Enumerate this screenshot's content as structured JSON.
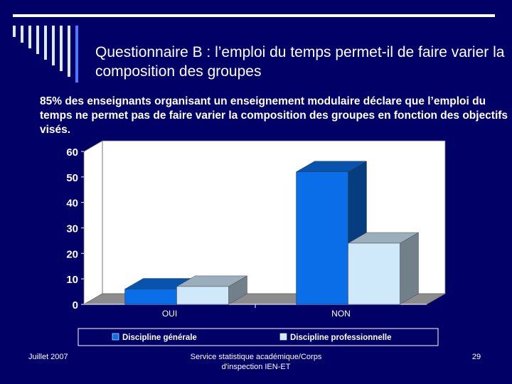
{
  "slide": {
    "title": "Questionnaire B : l’emploi du temps permet-il de faire varier la composition des groupes",
    "subtitle": "85% des enseignants organisant un enseignement modulaire déclare que l’emploi du temps ne permet pas de faire varier la composition des groupes en fonction des objectifs visés.",
    "footer_left": "Juillet 2007",
    "footer_center": "Service statistique académique/Corps d'inspection IEN-ET",
    "footer_right": "29"
  },
  "chart_data": {
    "type": "bar",
    "categories": [
      "OUI",
      "NON"
    ],
    "series": [
      {
        "name": "Discipline générale",
        "values": [
          6,
          52
        ],
        "color": "#0a6ee8"
      },
      {
        "name": "Discipline professionnelle",
        "values": [
          7,
          24
        ],
        "color": "#cfe8fa"
      }
    ],
    "ylim": [
      0,
      60
    ],
    "yticks": [
      "0",
      "10",
      "20",
      "30",
      "40",
      "50",
      "60"
    ],
    "legend_position": "bottom",
    "grid": false,
    "style": "3d"
  }
}
